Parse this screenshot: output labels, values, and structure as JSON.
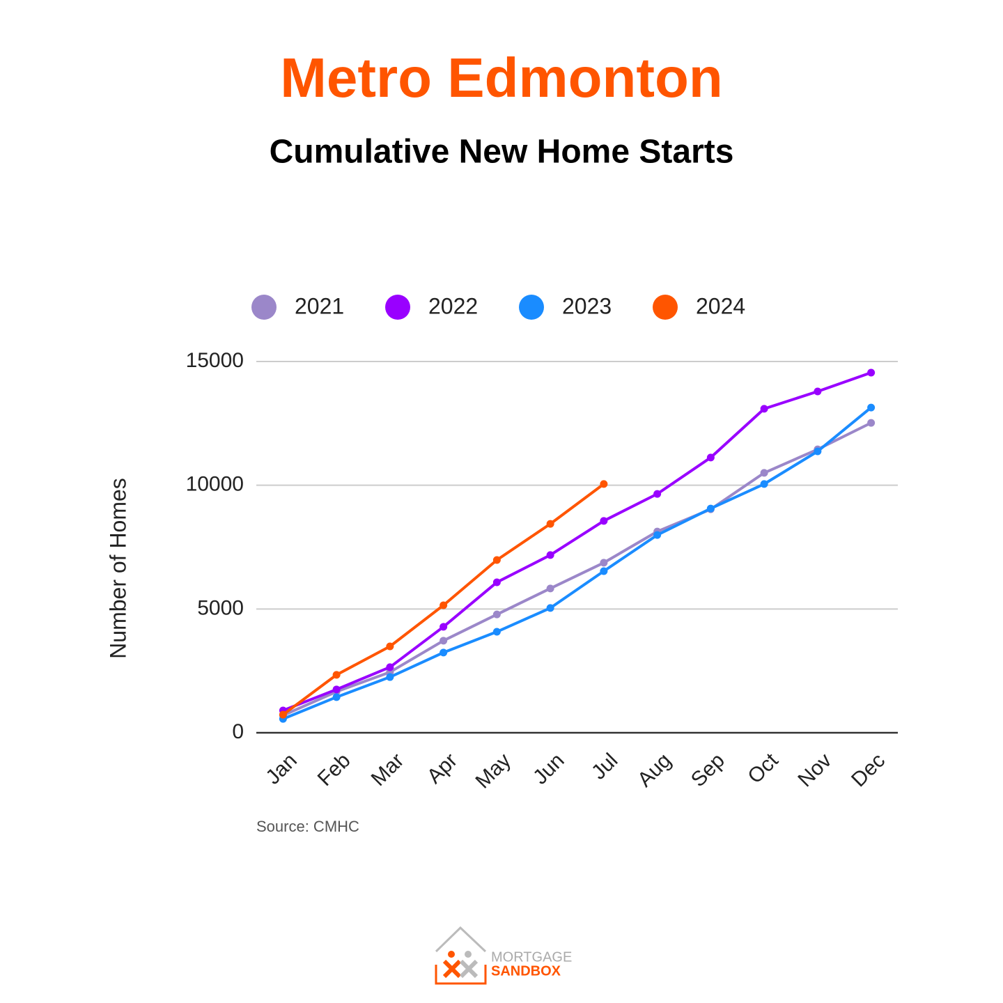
{
  "chart_data": {
    "type": "line",
    "title": "Metro Edmonton",
    "subtitle": "Cumulative New Home Starts",
    "y_label": "Number of Homes",
    "source": "Source: CMHC",
    "categories": [
      "Jan",
      "Feb",
      "Mar",
      "Apr",
      "May",
      "Jun",
      "Jul",
      "Aug",
      "Sep",
      "Oct",
      "Nov",
      "Dec"
    ],
    "series": [
      {
        "name": "2021",
        "color": "#9b87c9",
        "values": [
          700,
          1660,
          2450,
          3720,
          4780,
          5830,
          6870,
          8130,
          9030,
          10500,
          11450,
          12520
        ]
      },
      {
        "name": "2022",
        "color": "#9900ff",
        "values": [
          900,
          1750,
          2650,
          4280,
          6080,
          7180,
          8560,
          9650,
          11120,
          13090,
          13790,
          14550
        ]
      },
      {
        "name": "2023",
        "color": "#1a8cff",
        "values": [
          560,
          1440,
          2250,
          3240,
          4080,
          5040,
          6530,
          7990,
          9060,
          10050,
          11370,
          13140
        ]
      },
      {
        "name": "2024",
        "color": "#ff5500",
        "values": [
          730,
          2340,
          3490,
          5150,
          6980,
          8440,
          10050,
          null,
          null,
          null,
          null,
          null
        ]
      }
    ],
    "ylim": [
      0,
      15000
    ],
    "yticks": [
      0,
      5000,
      10000,
      15000
    ],
    "grid": true,
    "legend": "top"
  },
  "logo": {
    "line1": "MORTGAGE",
    "line2": "SANDBOX"
  }
}
